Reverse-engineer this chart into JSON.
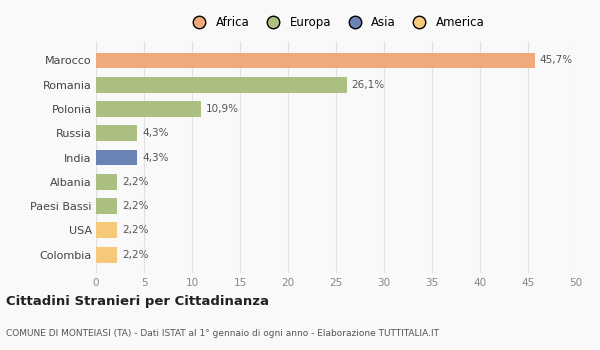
{
  "categories": [
    "Colombia",
    "USA",
    "Paesi Bassi",
    "Albania",
    "India",
    "Russia",
    "Polonia",
    "Romania",
    "Marocco"
  ],
  "values": [
    2.2,
    2.2,
    2.2,
    2.2,
    4.3,
    4.3,
    10.9,
    26.1,
    45.7
  ],
  "labels": [
    "2,2%",
    "2,2%",
    "2,2%",
    "2,2%",
    "4,3%",
    "4,3%",
    "10,9%",
    "26,1%",
    "45,7%"
  ],
  "colors": [
    "#F5C87A",
    "#F5C87A",
    "#AABF80",
    "#AABF80",
    "#6B82B5",
    "#AABF80",
    "#AABF80",
    "#AABF80",
    "#F0A97A"
  ],
  "continent_colors": {
    "Africa": "#F0A97A",
    "Europa": "#AABF80",
    "Asia": "#6B82B5",
    "America": "#F5C87A"
  },
  "legend_labels": [
    "Africa",
    "Europa",
    "Asia",
    "America"
  ],
  "xlim": [
    0,
    50
  ],
  "xticks": [
    0,
    5,
    10,
    15,
    20,
    25,
    30,
    35,
    40,
    45,
    50
  ],
  "title": "Cittadini Stranieri per Cittadinanza",
  "subtitle": "COMUNE DI MONTEIASI (TA) - Dati ISTAT al 1° gennaio di ogni anno - Elaborazione TUTTITALIA.IT",
  "bg_color": "#f9f9f9",
  "grid_color": "#e0e0e0"
}
